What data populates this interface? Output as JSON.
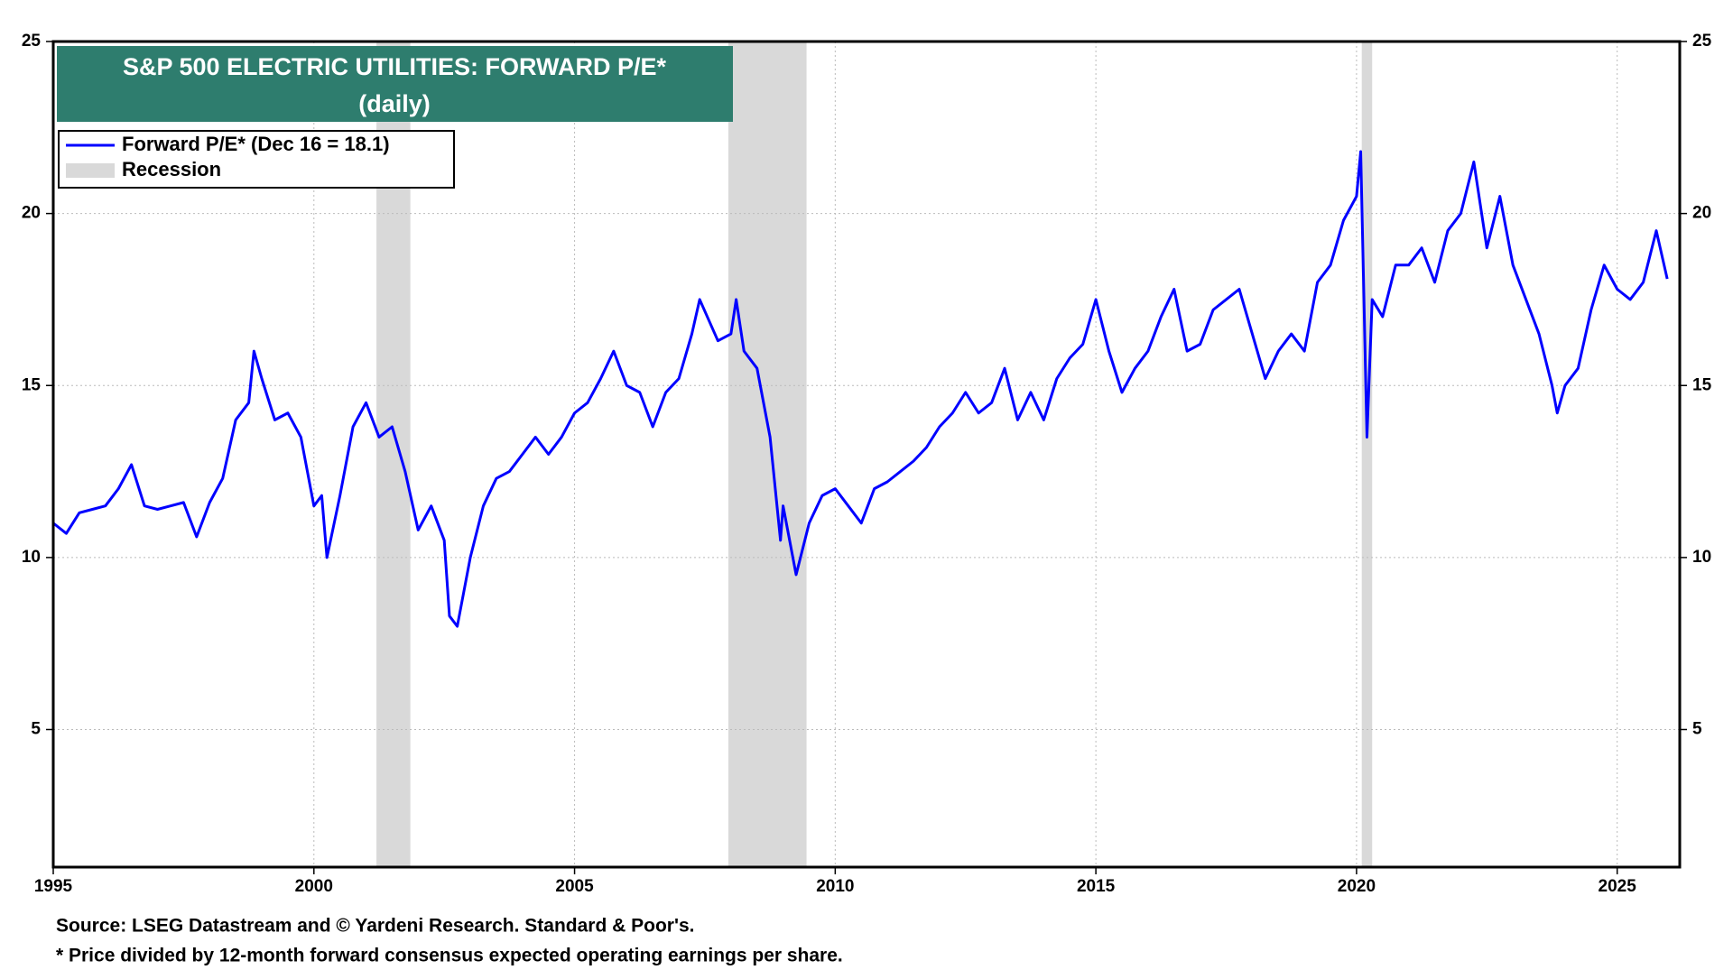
{
  "chart_data": {
    "type": "line",
    "title": "S&P 500 ELECTRIC UTILITIES: FORWARD P/E*",
    "subtitle": "(daily)",
    "notes": [
      "Source: LSEG Datastream and © Yardeni Research. Standard & Poor's.",
      "* Price divided by 12-month forward consensus expected operating earnings per share."
    ],
    "recession_name": "Recession",
    "recession_color": "#d9d9d9",
    "recessions": [
      [
        2001.2,
        2001.85
      ],
      [
        2007.95,
        2009.45
      ],
      [
        2020.1,
        2020.3
      ]
    ],
    "xlim": [
      1995,
      2026.2
    ],
    "xticks": [
      1995,
      2000,
      2005,
      2010,
      2015,
      2020,
      2025
    ],
    "ylim": [
      1,
      25
    ],
    "yticks": [
      5,
      10,
      15,
      20,
      25
    ],
    "y2lim": [
      1,
      25
    ],
    "y2ticks": [
      5,
      10,
      15,
      20,
      25
    ],
    "grid": true,
    "legend": "upper-left",
    "x": [
      1995.0,
      1995.25,
      1995.5,
      1995.75,
      1996.0,
      1996.25,
      1996.5,
      1996.75,
      1997.0,
      1997.25,
      1997.5,
      1997.75,
      1998.0,
      1998.25,
      1998.5,
      1998.75,
      1998.85,
      1999.0,
      1999.25,
      1999.5,
      1999.75,
      2000.0,
      2000.15,
      2000.25,
      2000.5,
      2000.75,
      2001.0,
      2001.25,
      2001.5,
      2001.75,
      2002.0,
      2002.25,
      2002.5,
      2002.6,
      2002.75,
      2003.0,
      2003.25,
      2003.5,
      2003.75,
      2004.0,
      2004.25,
      2004.5,
      2004.75,
      2005.0,
      2005.25,
      2005.5,
      2005.75,
      2006.0,
      2006.25,
      2006.5,
      2006.75,
      2007.0,
      2007.25,
      2007.4,
      2007.75,
      2008.0,
      2008.1,
      2008.25,
      2008.5,
      2008.75,
      2008.95,
      2009.0,
      2009.25,
      2009.5,
      2009.75,
      2010.0,
      2010.25,
      2010.5,
      2010.75,
      2011.0,
      2011.25,
      2011.5,
      2011.75,
      2012.0,
      2012.25,
      2012.5,
      2012.75,
      2013.0,
      2013.25,
      2013.5,
      2013.75,
      2014.0,
      2014.25,
      2014.5,
      2014.75,
      2015.0,
      2015.25,
      2015.5,
      2015.75,
      2016.0,
      2016.25,
      2016.5,
      2016.75,
      2017.0,
      2017.25,
      2017.5,
      2017.75,
      2018.0,
      2018.25,
      2018.5,
      2018.75,
      2019.0,
      2019.25,
      2019.5,
      2019.75,
      2020.0,
      2020.08,
      2020.2,
      2020.3,
      2020.5,
      2020.75,
      2021.0,
      2021.25,
      2021.5,
      2021.75,
      2022.0,
      2022.25,
      2022.5,
      2022.75,
      2023.0,
      2023.25,
      2023.5,
      2023.75,
      2023.85,
      2024.0,
      2024.25,
      2024.5,
      2024.75,
      2025.0,
      2025.25,
      2025.5,
      2025.75,
      2025.96
    ],
    "series": [
      {
        "name": "Forward P/E* (Dec 16 = 18.1)",
        "color": "#0000ff",
        "values": [
          11.0,
          10.7,
          11.3,
          11.4,
          11.5,
          12.0,
          12.7,
          11.5,
          11.4,
          11.5,
          11.6,
          10.6,
          11.6,
          12.3,
          14.0,
          14.5,
          16.0,
          15.2,
          14.0,
          14.2,
          13.5,
          11.5,
          11.8,
          10.0,
          11.8,
          13.8,
          14.5,
          13.5,
          13.8,
          12.5,
          10.8,
          11.5,
          10.5,
          8.3,
          8.0,
          10.0,
          11.5,
          12.3,
          12.5,
          13.0,
          13.5,
          13.0,
          13.5,
          14.2,
          14.5,
          15.2,
          16.0,
          15.0,
          14.8,
          13.8,
          14.8,
          15.2,
          16.5,
          17.5,
          16.3,
          16.5,
          17.5,
          16.0,
          15.5,
          13.5,
          10.5,
          11.5,
          9.5,
          11.0,
          11.8,
          12.0,
          11.5,
          11.0,
          12.0,
          12.2,
          12.5,
          12.8,
          13.2,
          13.8,
          14.2,
          14.8,
          14.2,
          14.5,
          15.5,
          14.0,
          14.8,
          14.0,
          15.2,
          15.8,
          16.2,
          17.5,
          16.0,
          14.8,
          15.5,
          16.0,
          17.0,
          17.8,
          16.0,
          16.2,
          17.2,
          17.5,
          17.8,
          16.5,
          15.2,
          16.0,
          16.5,
          16.0,
          18.0,
          18.5,
          19.8,
          20.5,
          21.8,
          13.5,
          17.5,
          17.0,
          18.5,
          18.5,
          19.0,
          18.0,
          19.5,
          20.0,
          21.5,
          19.0,
          20.5,
          18.5,
          17.5,
          16.5,
          15.0,
          14.2,
          15.0,
          15.5,
          17.2,
          18.5,
          17.8,
          17.5,
          18.0,
          19.5,
          18.1
        ]
      }
    ]
  }
}
